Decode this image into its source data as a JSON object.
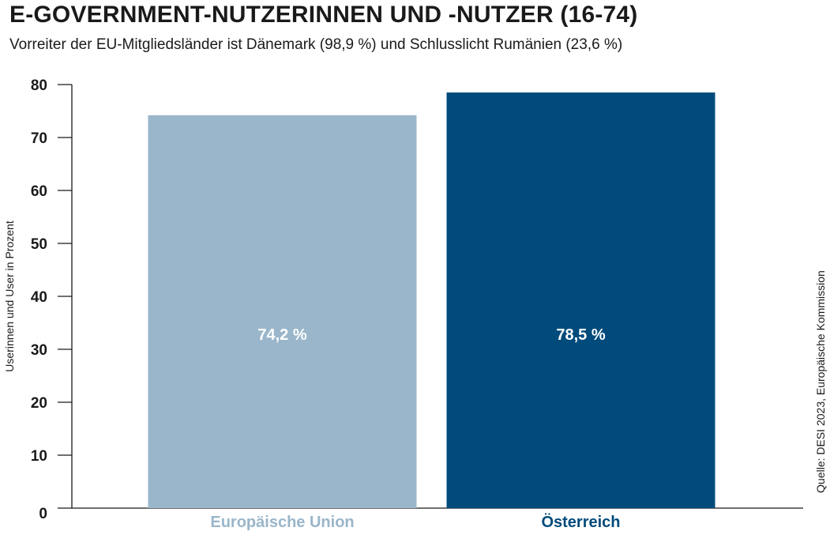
{
  "chart_data": {
    "type": "bar",
    "title": "E-GOVERNMENT-NUTZERINNEN UND -NUTZER (16-74)",
    "subtitle": "Vorreiter der EU-Mitgliedsländer ist Dänemark (98,9 %) und Schlusslicht Rumänien (23,6 %)",
    "ylabel": "Userinnen und User in Prozent",
    "xlabel": "",
    "source": "Quelle: DESI 2023, Europäische Kommission",
    "categories": [
      "Europäische Union",
      "Österreich"
    ],
    "values": [
      74.2,
      78.5
    ],
    "value_labels": [
      "74,2 %",
      "78,5 %"
    ],
    "colors": [
      "#9ab6ca",
      "#004b7c"
    ],
    "ylim": [
      0,
      80
    ],
    "yticks": [
      0,
      10,
      20,
      30,
      40,
      50,
      60,
      70,
      80
    ],
    "grid": false,
    "legend": "none"
  }
}
